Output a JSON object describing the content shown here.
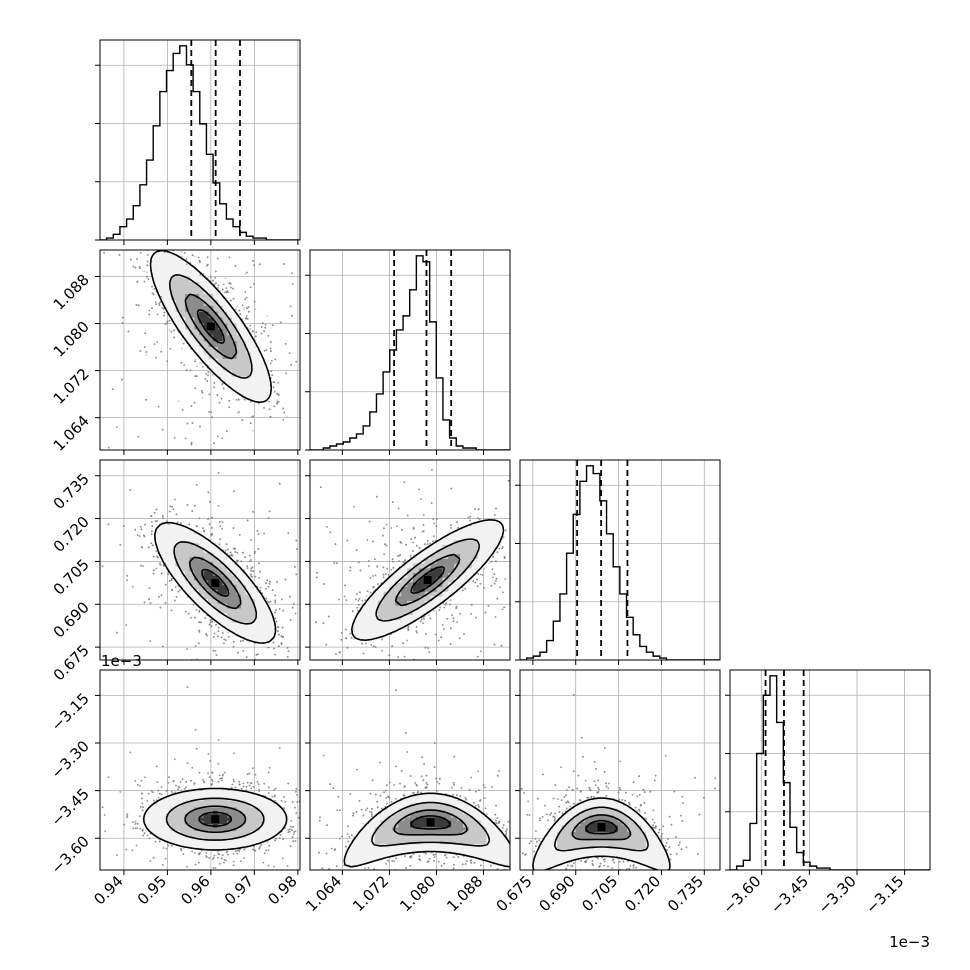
{
  "chart_data": {
    "type": "corner",
    "grid": true,
    "colors": {
      "line": "#000000",
      "grid": "#b0b0b0",
      "points": "#808080"
    },
    "quantile_lines": "dashed",
    "params": [
      {
        "range": [
          0.9345,
          0.9805
        ],
        "ticks": [
          0.94,
          0.95,
          0.96,
          0.97,
          0.98
        ],
        "tick_labels": [
          "0.94",
          "0.95",
          "0.96",
          "0.97",
          "0.98"
        ],
        "quantiles": [
          0.9555,
          0.9611,
          0.9667
        ],
        "mean": 0.961,
        "sd": 0.0056
      },
      {
        "range": [
          1.0585,
          1.0925
        ],
        "ticks": [
          1.064,
          1.072,
          1.08,
          1.088
        ],
        "tick_labels": [
          "1.064",
          "1.072",
          "1.080",
          "1.088"
        ],
        "quantiles": [
          1.0728,
          1.0783,
          1.0825
        ],
        "mean": 1.078,
        "sd": 0.0052
      },
      {
        "range": [
          0.6705,
          0.7405
        ],
        "ticks": [
          0.675,
          0.69,
          0.705,
          0.72,
          0.735
        ],
        "tick_labels": [
          "0.675",
          "0.690",
          "0.705",
          "0.720",
          "0.735"
        ],
        "quantiles": [
          0.6905,
          0.6989,
          0.7081
        ],
        "mean": 0.699,
        "sd": 0.0085
      },
      {
        "range": [
          -3.7,
          -3.07
        ],
        "ticks": [
          -3.6,
          -3.45,
          -3.3,
          -3.15
        ],
        "tick_labels": [
          "−3.60",
          "−3.45",
          "−3.30",
          "−3.15"
        ],
        "quantiles": [
          -3.588,
          -3.53,
          -3.468
        ],
        "mean": -3.53,
        "sd": 0.055,
        "offset_text": "1e−3"
      }
    ],
    "histograms": [
      {
        "param": 0,
        "bin_start": 0.9345,
        "bin_width": 0.00153,
        "counts": [
          0,
          1,
          3,
          7,
          11,
          18,
          29,
          42,
          60,
          78,
          89,
          98,
          102,
          92,
          78,
          61,
          45,
          30,
          19,
          11,
          7,
          4,
          2,
          1,
          1,
          0,
          0,
          0,
          0,
          0
        ]
      },
      {
        "param": 1,
        "bin_start": 1.0585,
        "bin_width": 0.00113,
        "counts": [
          0,
          0,
          1,
          2,
          3,
          4,
          6,
          8,
          12,
          19,
          28,
          39,
          50,
          60,
          67,
          80,
          97,
          94,
          64,
          36,
          15,
          6,
          2,
          1,
          1,
          0,
          0,
          0,
          0,
          0
        ]
      },
      {
        "param": 2,
        "bin_start": 0.6705,
        "bin_width": 0.00233,
        "counts": [
          0,
          1,
          2,
          4,
          10,
          20,
          34,
          55,
          75,
          92,
          100,
          96,
          82,
          65,
          48,
          34,
          22,
          13,
          7,
          4,
          2,
          1,
          0,
          0,
          0,
          0,
          0,
          0,
          0,
          0
        ]
      },
      {
        "param": 3,
        "bin_start": -3.7,
        "bin_width": 0.021,
        "counts": [
          0,
          2,
          5,
          24,
          60,
          90,
          100,
          76,
          45,
          22,
          9,
          4,
          2,
          1,
          1,
          0,
          0,
          0,
          0,
          0,
          0,
          0,
          0,
          0,
          0,
          0,
          0,
          0,
          0,
          0
        ]
      }
    ],
    "pairs": [
      {
        "x": 0,
        "y": 1,
        "rho": -0.82,
        "peak": [
          0.96,
          1.0795
        ]
      },
      {
        "x": 0,
        "y": 2,
        "rho": -0.78,
        "peak": [
          0.961,
          0.6975
        ]
      },
      {
        "x": 1,
        "y": 2,
        "rho": 0.84,
        "peak": [
          1.0785,
          0.6985
        ]
      },
      {
        "x": 0,
        "y": 3,
        "rho": 0.0,
        "peak": [
          0.961,
          -3.54
        ],
        "shape": "oval"
      },
      {
        "x": 1,
        "y": 3,
        "rho": 0.0,
        "peak": [
          1.079,
          -3.55
        ],
        "shape": "crescent"
      },
      {
        "x": 2,
        "y": 3,
        "rho": 0.0,
        "peak": [
          0.699,
          -3.565
        ],
        "shape": "crescent"
      }
    ],
    "offset_labels": [
      "1e−3",
      "1e−3"
    ]
  }
}
